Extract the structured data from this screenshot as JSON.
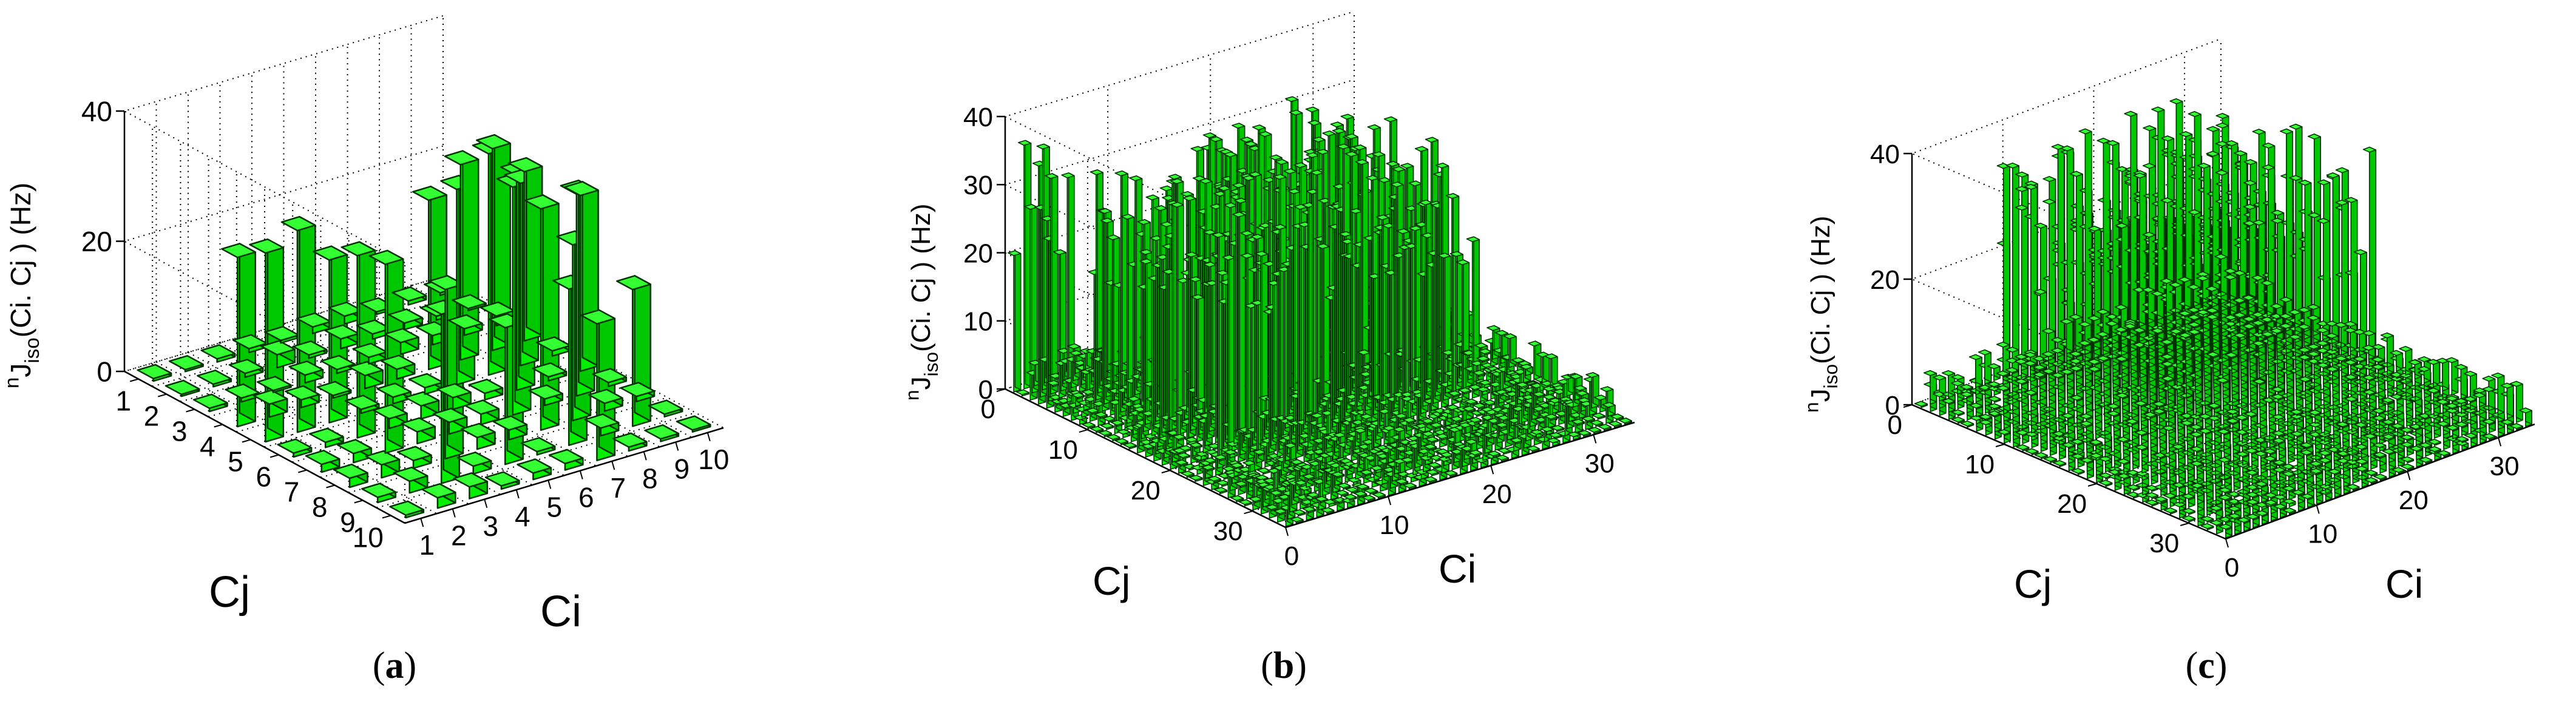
{
  "figure": {
    "captions": [
      {
        "open": "(",
        "letter": "a",
        "close": ")"
      },
      {
        "open": "(",
        "letter": "b",
        "close": ")"
      },
      {
        "open": "(",
        "letter": "c",
        "close": ")"
      }
    ]
  },
  "colors": {
    "bar_front": "#00f000",
    "bar_side": "#00c800",
    "bar_top": "#33ff33",
    "bar_edge": "#003300",
    "grid": "#000000",
    "axis": "#000000",
    "background": "#ffffff"
  },
  "chart_data": [
    {
      "type": "bar3d",
      "panel": "a",
      "title": "",
      "zlabel": {
        "prefix": "n",
        "main": "J",
        "sub": "iso",
        "rest": "(Ci. Cj ) (Hz)"
      },
      "xlabel": "Ci",
      "ylabel": "Cj",
      "xticks": [
        "1",
        "2",
        "3",
        "4",
        "5",
        "6",
        "7",
        "8",
        "9",
        "10"
      ],
      "yticks": [
        "1",
        "2",
        "3",
        "4",
        "5",
        "6",
        "7",
        "8",
        "9",
        "10"
      ],
      "zticks": [
        "0",
        "20",
        "40"
      ],
      "zlim": [
        0,
        40
      ],
      "grid": true,
      "n": 10,
      "values": [
        [
          0.4,
          0.3,
          0.5,
          0.6,
          0.4,
          1.0,
          1.2,
          0.4,
          0.6,
          0.4
        ],
        [
          0.3,
          0.4,
          0.6,
          2.0,
          0.5,
          1.5,
          0.8,
          1.0,
          0.6,
          0.3
        ],
        [
          0.5,
          0.6,
          0.3,
          1.2,
          0.6,
          1.0,
          1.8,
          1.4,
          1.0,
          1.5
        ],
        [
          26.0,
          2.0,
          1.2,
          0.4,
          2.0,
          1.5,
          26.0,
          30.0,
          31.0,
          26.0
        ],
        [
          29.0,
          31.0,
          25.0,
          0.6,
          1.0,
          1.0,
          30.0,
          34.0,
          28.0,
          0.8
        ],
        [
          0.6,
          0.8,
          28.0,
          1.5,
          2.0,
          1.8,
          1.0,
          33.0,
          0.6,
          27.0
        ],
        [
          1.2,
          1.4,
          29.0,
          1.8,
          1.8,
          1.6,
          35.0,
          1.0,
          31.0,
          0.6
        ],
        [
          1.4,
          2.0,
          1.2,
          26.0,
          1.8,
          1.5,
          34.0,
          27.0,
          1.2,
          0.8
        ],
        [
          0.8,
          1.8,
          26.0,
          1.2,
          21.0,
          0.5,
          24.0,
          1.2,
          21.0,
          0.4
        ],
        [
          0.4,
          1.6,
          1.8,
          0.5,
          1.0,
          1.0,
          21.0,
          0.6,
          0.4,
          0.3
        ]
      ],
      "note": "values[j][i] indexed by Cj (row) and Ci (col); approximate, read from 3D bar heights"
    },
    {
      "type": "bar3d",
      "panel": "b",
      "title": "",
      "zlabel": {
        "prefix": "n",
        "main": "J",
        "sub": "iso",
        "rest": "(Ci. Cj ) (Hz)"
      },
      "xlabel": "Ci",
      "ylabel": "Cj",
      "xticks": [
        "0",
        "10",
        "20",
        "30"
      ],
      "yticks": [
        "0",
        "10",
        "20",
        "30"
      ],
      "zticks": [
        "0",
        "10",
        "20",
        "30",
        "40"
      ],
      "zlim": [
        0,
        40
      ],
      "grid": true,
      "n": 34,
      "pattern": "tall bars (~20-36 Hz) in two bands along Cj≈1-4 and Cj≈11-22 / Ci≈10-26 blocks; small bars (0.5-5 Hz) elsewhere",
      "tall_range": [
        19,
        36
      ],
      "small_range": [
        0.3,
        5
      ]
    },
    {
      "type": "bar3d",
      "panel": "c",
      "title": "",
      "zlabel": {
        "prefix": "n",
        "main": "J",
        "sub": "iso",
        "rest": "(Ci. Cj ) (Hz)"
      },
      "xlabel": "Ci",
      "ylabel": "Cj",
      "xticks": [
        "0",
        "10",
        "20",
        "30"
      ],
      "yticks": [
        "0",
        "10",
        "20",
        "30"
      ],
      "zticks": [
        "0",
        "20",
        "40"
      ],
      "zlim": [
        0,
        40
      ],
      "grid": true,
      "n": 34,
      "pattern": "tall bars (~20-40 Hz) filling central block Cj≈5-22, Ci≈5-26; small bars (0.5-6 Hz) elsewhere",
      "tall_range": [
        19,
        40
      ],
      "small_range": [
        0.3,
        6
      ]
    }
  ]
}
